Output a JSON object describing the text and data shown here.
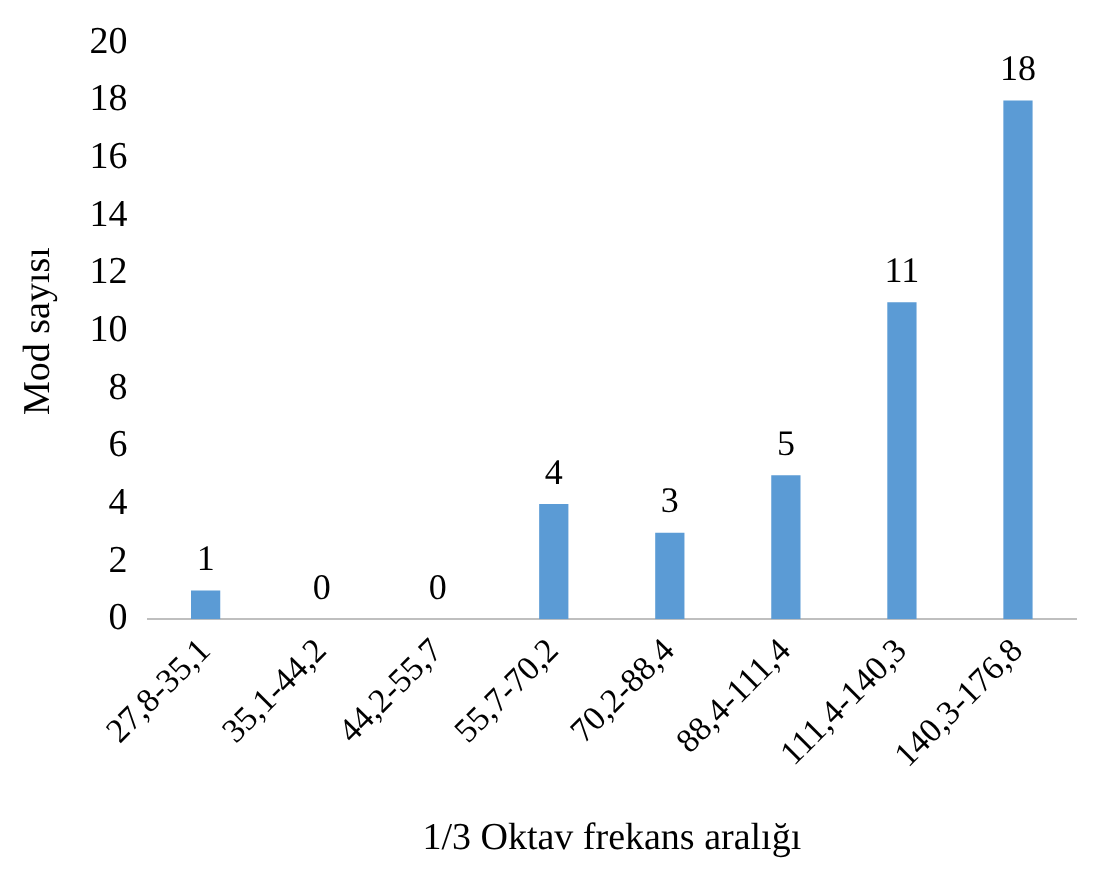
{
  "chart_data": {
    "type": "bar",
    "xlabel": "1/3 Oktav frekans aralığı",
    "ylabel": "Mod sayısı",
    "categories": [
      "27,8-35,1",
      "35,1-44,2",
      "44,2-55,7",
      "55,7-70,2",
      "70,2-88,4",
      "88,4-111,4",
      "111,4-140,3",
      "140,3-176,8"
    ],
    "values": [
      1,
      0,
      0,
      4,
      3,
      5,
      11,
      18
    ],
    "color": "#5b9bd5",
    "ylim": [
      0,
      20
    ],
    "yticks": [
      0,
      2,
      4,
      6,
      8,
      10,
      12,
      14,
      16,
      18,
      20
    ],
    "grid": false,
    "legend": false,
    "data_labels": true
  }
}
